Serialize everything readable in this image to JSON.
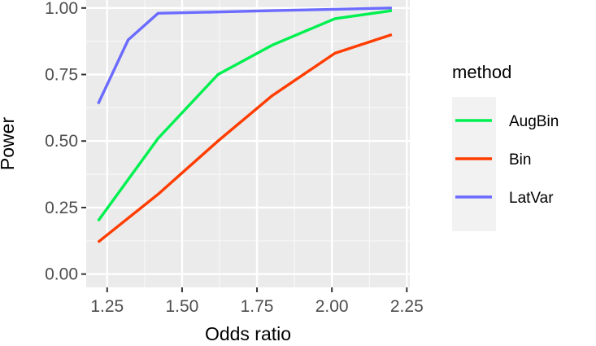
{
  "chart_data": {
    "type": "line",
    "xlabel": "Odds ratio",
    "ylabel": "Power",
    "xlim": [
      1.18,
      2.26
    ],
    "ylim": [
      -0.05,
      1.03
    ],
    "x_ticks": [
      1.25,
      1.5,
      1.75,
      2.0,
      2.25
    ],
    "x_tick_labels": [
      "1.25",
      "1.50",
      "1.75",
      "2.00",
      "2.25"
    ],
    "y_ticks": [
      0.0,
      0.25,
      0.5,
      0.75,
      1.0
    ],
    "y_tick_labels": [
      "0.00",
      "0.25",
      "0.50",
      "0.75",
      "1.00"
    ],
    "grid": true,
    "legend": {
      "title": "method",
      "placement": "right"
    },
    "series": [
      {
        "name": "AugBin",
        "color": "#00f050",
        "x": [
          1.22,
          1.42,
          1.62,
          1.8,
          2.01,
          2.2
        ],
        "y": [
          0.2,
          0.51,
          0.75,
          0.86,
          0.96,
          0.99
        ]
      },
      {
        "name": "Bin",
        "color": "#ff3d00",
        "x": [
          1.22,
          1.42,
          1.62,
          1.8,
          2.01,
          2.2
        ],
        "y": [
          0.12,
          0.3,
          0.5,
          0.67,
          0.83,
          0.9
        ]
      },
      {
        "name": "LatVar",
        "color": "#6b6bff",
        "x": [
          1.22,
          1.32,
          1.42,
          1.62,
          1.8,
          2.01,
          2.2
        ],
        "y": [
          0.64,
          0.88,
          0.98,
          0.985,
          0.99,
          0.995,
          1.0
        ]
      }
    ]
  }
}
